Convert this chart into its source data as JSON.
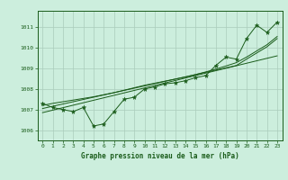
{
  "xlabel": "Graphe pression niveau de la mer (hPa)",
  "bg_color": "#cceedd",
  "grid_color": "#aaccbb",
  "line_color": "#1a5c1a",
  "marker_color": "#1a5c1a",
  "border_color": "#1a5c1a",
  "x": [
    0,
    1,
    2,
    3,
    4,
    5,
    6,
    7,
    8,
    9,
    10,
    11,
    12,
    13,
    14,
    15,
    16,
    17,
    18,
    19,
    20,
    21,
    22,
    23
  ],
  "y_measured": [
    1007.3,
    1007.1,
    1007.0,
    1006.9,
    1007.1,
    1006.2,
    1006.3,
    1006.9,
    1007.5,
    1007.6,
    1008.0,
    1008.1,
    1008.25,
    1008.3,
    1008.4,
    1008.55,
    1008.65,
    1009.15,
    1009.55,
    1009.45,
    1010.45,
    1011.1,
    1010.75,
    1011.25
  ],
  "y_trend1": [
    1006.85,
    1006.97,
    1007.09,
    1007.21,
    1007.33,
    1007.45,
    1007.57,
    1007.69,
    1007.81,
    1007.93,
    1008.05,
    1008.17,
    1008.29,
    1008.41,
    1008.53,
    1008.65,
    1008.77,
    1008.89,
    1009.01,
    1009.13,
    1009.25,
    1009.37,
    1009.49,
    1009.61
  ],
  "y_trend2": [
    1007.05,
    1007.16,
    1007.27,
    1007.38,
    1007.49,
    1007.6,
    1007.71,
    1007.82,
    1007.93,
    1008.04,
    1008.15,
    1008.26,
    1008.37,
    1008.48,
    1008.59,
    1008.7,
    1008.81,
    1008.92,
    1009.03,
    1009.14,
    1009.45,
    1009.75,
    1010.05,
    1010.45
  ],
  "y_trend3": [
    1007.2,
    1007.3,
    1007.38,
    1007.46,
    1007.54,
    1007.62,
    1007.72,
    1007.82,
    1007.94,
    1008.06,
    1008.18,
    1008.28,
    1008.38,
    1008.48,
    1008.58,
    1008.7,
    1008.83,
    1008.97,
    1009.12,
    1009.28,
    1009.55,
    1009.85,
    1010.15,
    1010.55
  ],
  "ylim": [
    1005.5,
    1011.8
  ],
  "yticks": [
    1006,
    1007,
    1008,
    1009,
    1010,
    1011
  ],
  "xlim": [
    -0.5,
    23.5
  ],
  "xticks": [
    0,
    1,
    2,
    3,
    4,
    5,
    6,
    7,
    8,
    9,
    10,
    11,
    12,
    13,
    14,
    15,
    16,
    17,
    18,
    19,
    20,
    21,
    22,
    23
  ]
}
